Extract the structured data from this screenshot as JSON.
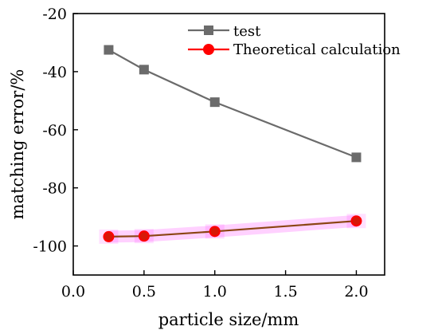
{
  "chart_data": {
    "type": "line",
    "title": "",
    "xlabel": "particle size/mm",
    "ylabel": "matching error/%",
    "xlim": [
      0.0,
      2.2
    ],
    "ylim": [
      -110,
      -20
    ],
    "x_ticks": [
      "0.0",
      "0.5",
      "1.0",
      "1.5",
      "2.0"
    ],
    "y_ticks": [
      "-20",
      "-40",
      "-60",
      "-80",
      "-100"
    ],
    "grid": false,
    "legend_position": "top-right",
    "series": [
      {
        "name": "test",
        "marker": "square",
        "color": "#6b6b6b",
        "x": [
          0.25,
          0.5,
          1.0,
          2.0
        ],
        "y": [
          -32.5,
          -39.3,
          -50.5,
          -69.5
        ]
      },
      {
        "name": "Theoretical calculation",
        "marker": "circle",
        "color": "#ff0000",
        "line_color": "#8b4513",
        "highlight_color": "#ff00ff",
        "x": [
          0.25,
          0.5,
          1.0,
          2.0
        ],
        "y": [
          -96.8,
          -96.6,
          -95.0,
          -91.4
        ]
      }
    ]
  }
}
